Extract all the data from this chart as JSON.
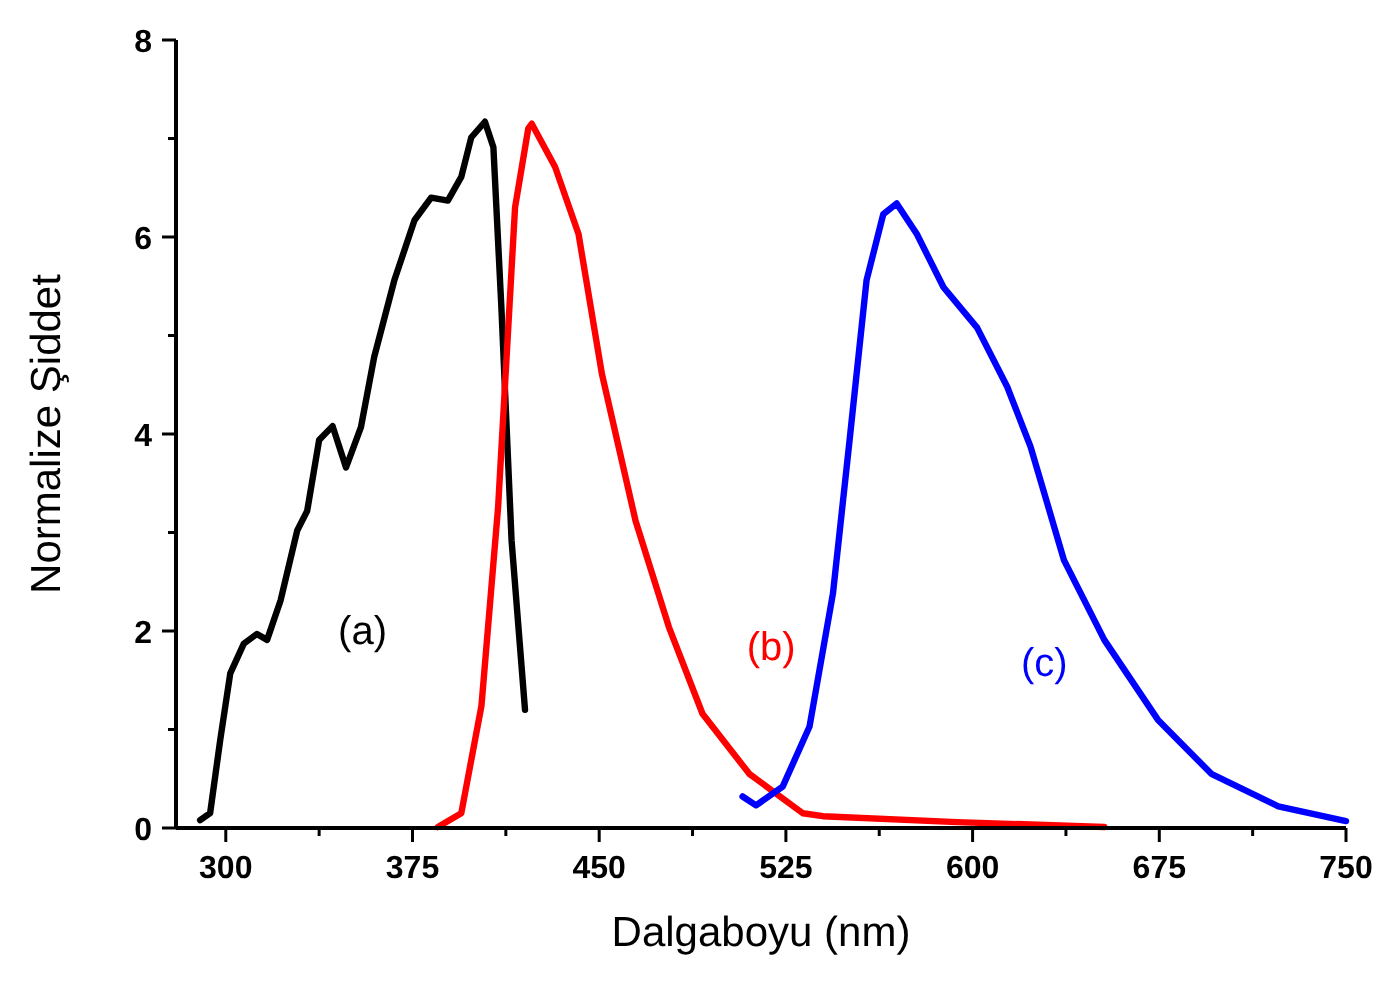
{
  "chart_data": {
    "type": "line",
    "xlabel": "Dalgaboyu (nm)",
    "ylabel": "Normalize Şiddet",
    "xlim": [
      280,
      750
    ],
    "ylim": [
      0,
      8
    ],
    "xticks": [
      300,
      {
        "value": 337.5,
        "label": null
      },
      375,
      {
        "value": 412.5,
        "label": null
      },
      450,
      {
        "value": 487.5,
        "label": null
      },
      525,
      {
        "value": 562.5,
        "label": null
      },
      600,
      {
        "value": 637.5,
        "label": null
      },
      675,
      {
        "value": 712.5,
        "label": null
      },
      750
    ],
    "yticks": [
      0,
      {
        "value": 1,
        "label": null
      },
      2,
      {
        "value": 3,
        "label": null
      },
      4,
      {
        "value": 5,
        "label": null
      },
      6,
      {
        "value": 7,
        "label": null
      },
      8
    ],
    "grid": false,
    "marker": "none",
    "line_style": "solid",
    "series": [
      {
        "name": "(a)",
        "color": "#000000",
        "x": [
          289.7,
          293.7,
          297.8,
          301.8,
          307.2,
          312.5,
          316.6,
          322,
          328.7,
          332.7,
          337.5,
          342.9,
          348.3,
          354.3,
          359.6,
          367.7,
          375.8,
          382.5,
          389.2,
          394.6,
          398.6,
          404.1,
          407.5,
          410.7,
          414.8,
          420.2
        ],
        "values": [
          0.08,
          0.15,
          0.9,
          1.57,
          1.87,
          1.97,
          1.91,
          2.31,
          3.02,
          3.22,
          3.94,
          4.08,
          3.66,
          4.07,
          4.78,
          5.56,
          6.17,
          6.4,
          6.37,
          6.61,
          7.01,
          7.17,
          6.91,
          5.29,
          2.92,
          1.2
        ]
      },
      {
        "name": "(b)",
        "color": "#ff0000",
        "x": [
          385.2,
          394.6,
          402.7,
          409.4,
          416.2,
          421.5,
          422.9,
          432.3,
          441.7,
          451.1,
          464.6,
          478,
          491.5,
          510.3,
          531.8,
          539.9,
          593.7,
          652.9
        ],
        "values": [
          0.01,
          0.15,
          1.24,
          3.26,
          6.3,
          7.1,
          7.15,
          6.71,
          6.03,
          4.61,
          3.12,
          2.04,
          1.16,
          0.55,
          0.15,
          0.12,
          0.06,
          0.01
        ]
      },
      {
        "name": "(c)",
        "color": "#0000ff",
        "x": [
          507.6,
          513,
          523.7,
          534.5,
          543.9,
          550.6,
          557.4,
          564.1,
          569.5,
          577.6,
          588.3,
          601.8,
          613.9,
          623.3,
          636.7,
          652.9,
          674.4,
          695.9,
          722.8,
          750
        ],
        "values": [
          0.32,
          0.23,
          0.42,
          1.03,
          2.38,
          3.94,
          5.56,
          6.23,
          6.34,
          6.03,
          5.49,
          5.08,
          4.48,
          3.87,
          2.72,
          1.91,
          1.1,
          0.55,
          0.22,
          0.07
        ]
      }
    ]
  }
}
